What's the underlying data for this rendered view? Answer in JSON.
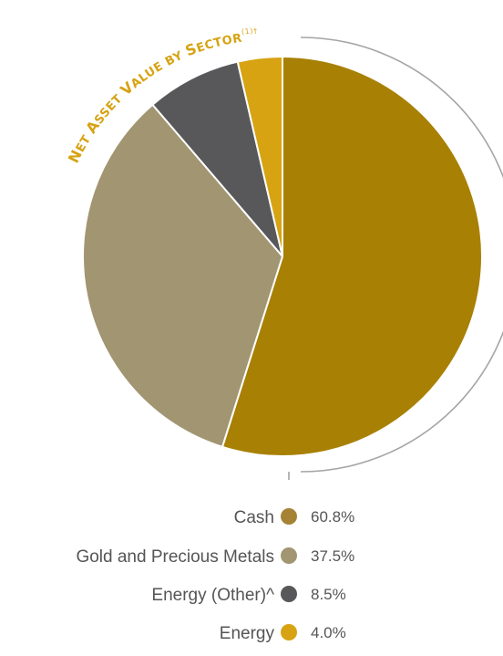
{
  "chart_data": {
    "type": "pie",
    "title_parts": [
      {
        "text": "N",
        "sc": false
      },
      {
        "text": "ET ",
        "sc": true
      },
      {
        "text": "A",
        "sc": false
      },
      {
        "text": "SSET ",
        "sc": true
      },
      {
        "text": "V",
        "sc": false
      },
      {
        "text": "ALUE BY ",
        "sc": true
      },
      {
        "text": "S",
        "sc": false
      },
      {
        "text": "ECTOR",
        "sc": true
      }
    ],
    "title_superscript": "(1)†",
    "categories": [
      "Cash",
      "Gold and Precious Metals",
      "Energy (Other)^",
      "Energy"
    ],
    "values": [
      60.8,
      37.5,
      8.5,
      4.0
    ],
    "value_labels": [
      "60.8%",
      "37.5%",
      "8.5%",
      "4.0%"
    ],
    "slice_colors": [
      "#a88004",
      "#a29572",
      "#58585a",
      "#d7a313"
    ],
    "legend_marker_colors": [
      "#a58234",
      "#a29572",
      "#58585a",
      "#d7a313"
    ],
    "title_color": "#d7a313",
    "legend_placement": "bottom"
  }
}
